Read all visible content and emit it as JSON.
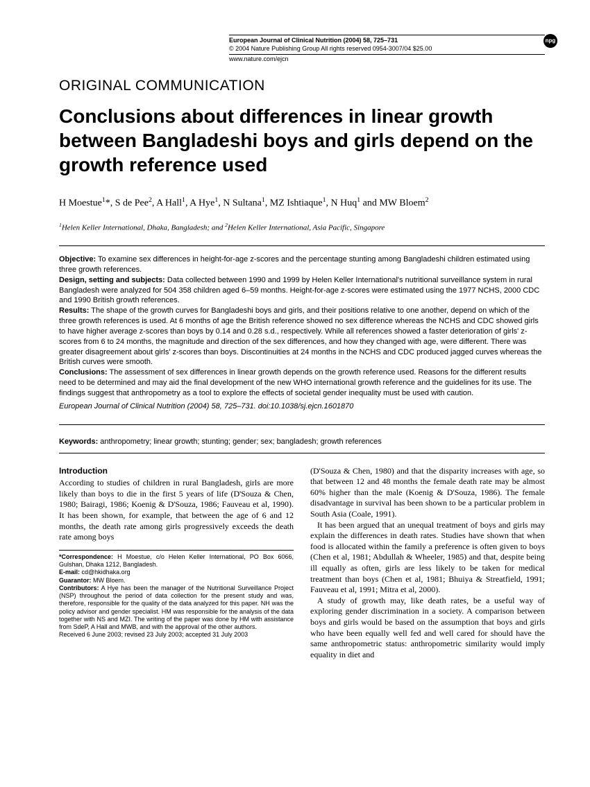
{
  "header": {
    "journal_line": "European Journal of Clinical Nutrition (2004) 58, 725–731",
    "copyright_line": "© 2004 Nature Publishing Group   All rights reserved   0954-3007/04   $25.00",
    "url": "www.nature.com/ejcn",
    "badge": "npg"
  },
  "section_label": "ORIGINAL COMMUNICATION",
  "title": "Conclusions about differences in linear growth between Bangladeshi boys and girls depend on the growth reference used",
  "authors_html": "H Moestue<sup>1</sup>*, S de Pee<sup>2</sup>, A Hall<sup>1</sup>, A Hye<sup>1</sup>, N Sultana<sup>1</sup>, MZ Ishtiaque<sup>1</sup>, N Huq<sup>1</sup> and MW Bloem<sup>2</sup>",
  "affiliations_html": "<sup>1</sup>Helen Keller International, Dhaka, Bangladesh; and <sup>2</sup>Helen Keller International, Asia Pacific, Singapore",
  "abstract": {
    "objective_label": "Objective:",
    "objective": " To examine sex differences in height-for-age z-scores and the percentage stunting among Bangladeshi children estimated using three growth references.",
    "design_label": "Design, setting and subjects:",
    "design": " Data collected between 1990 and 1999 by Helen Keller International's nutritional surveillance system in rural Bangladesh were analyzed for 504 358 children aged 6–59 months. Height-for-age z-scores were estimated using the 1977 NCHS, 2000 CDC and 1990 British growth references.",
    "results_label": "Results:",
    "results": " The shape of the growth curves for Bangladeshi boys and girls, and their positions relative to one another, depend on which of the three growth references is used. At 6 months of age the British reference showed no sex difference whereas the NCHS and CDC showed girls to have higher average z-scores than boys by 0.14 and 0.28 s.d., respectively. While all references showed a faster deterioration of girls' z-scores from 6 to 24 months, the magnitude and direction of the sex differences, and how they changed with age, were different. There was greater disagreement about girls' z-scores than boys. Discontinuities at 24 months in the NCHS and CDC produced jagged curves whereas the British curves were smooth.",
    "conclusions_label": "Conclusions:",
    "conclusions": " The assessment of sex differences in linear growth depends on the growth reference used. Reasons for the different results need to be determined and may aid the final development of the new WHO international growth reference and the guidelines for its use. The findings suggest that anthropometry as a tool to explore the effects of societal gender inequality must be used with caution.",
    "citation": "European Journal of Clinical Nutrition (2004) 58, 725–731. doi:10.1038/sj.ejcn.1601870"
  },
  "keywords_label": "Keywords:",
  "keywords": " anthropometry; linear growth; stunting; gender; sex; bangladesh; growth references",
  "body": {
    "intro_heading": "Introduction",
    "col1_p1": "According to studies of children in rural Bangladesh, girls are more likely than boys to die in the first 5 years of life (D'Souza & Chen, 1980; Bairagi, 1986; Koenig & D'Souza, 1986; Fauveau et al, 1990). It has been shown, for example, that between the age of 6 and 12 months, the death rate among girls progressively exceeds the death rate among boys",
    "col2_p1": "(D'Souza & Chen, 1980) and that the disparity increases with age, so that between 12 and 48 months the female death rate may be almost 60% higher than the male (Koenig & D'Souza, 1986). The female disadvantage in survival has been shown to be a particular problem in South Asia (Coale, 1991).",
    "col2_p2": "It has been argued that an unequal treatment of boys and girls may explain the differences in death rates. Studies have shown that when food is allocated within the family a preference is often given to boys (Chen et al, 1981; Abdullah & Wheeler, 1985) and that, despite being ill equally as often, girls are less likely to be taken for medical treatment than boys (Chen et al, 1981; Bhuiya & Streatfield, 1991; Fauveau et al, 1991; Mitra et al, 2000).",
    "col2_p3": "A study of growth may, like death rates, be a useful way of exploring gender discrimination in a society. A comparison between boys and girls would be based on the assumption that boys and girls who have been equally well fed and well cared for should have the same anthropometric status: anthropometric similarity would imply equality in diet and"
  },
  "footnote": {
    "correspondence_label": "*Correspondence:",
    "correspondence": " H Moestue, c/o Helen Keller International, PO Box 6066, Gulshan, Dhaka 1212, Bangladesh.",
    "email_label": "E-mail:",
    "email": " cd@hkidhaka.org",
    "guarantor_label": "Guarantor:",
    "guarantor": " MW Bloem.",
    "contributors_label": "Contributors:",
    "contributors": " A Hye has been the manager of the Nutritional Surveillance Project (NSP) throughout the period of data collection for the present study and was, therefore, responsible for the quality of the data analyzed for this paper. NH was the policy advisor and gender specialist. HM was responsible for the analysis of the data together with NS and MZI. The writing of the paper was done by HM with assistance from SdeP, A Hall and MWB, and with the approval of the other authors.",
    "dates": "Received 6 June 2003; revised 23 July 2003; accepted 31 July 2003"
  }
}
